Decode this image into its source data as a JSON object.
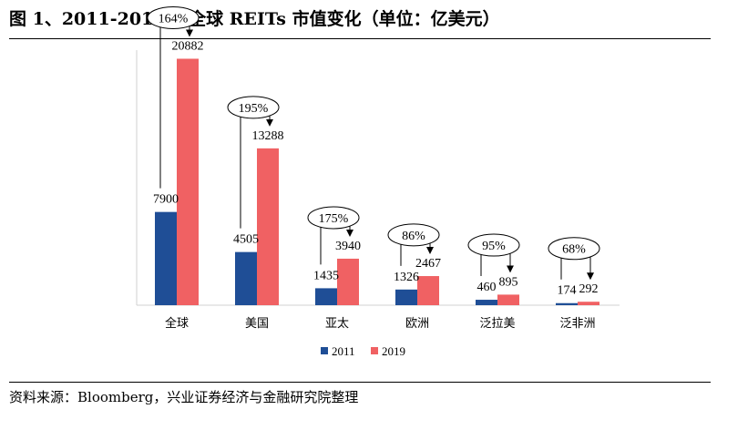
{
  "title": "图 1、2011-2019 年全球 REITs 市值变化（单位：亿美元）",
  "source": "资料来源：Bloomberg，兴业证券经济与金融研究院整理",
  "chart_data": {
    "type": "bar",
    "categories": [
      "全球",
      "美国",
      "亚太",
      "欧洲",
      "泛拉美",
      "泛非洲"
    ],
    "series": [
      {
        "name": "2011",
        "color": "#1f4e96",
        "values": [
          7900,
          4505,
          1435,
          1326,
          460,
          174
        ]
      },
      {
        "name": "2019",
        "color": "#f06163",
        "values": [
          20882,
          13288,
          3940,
          2467,
          895,
          292
        ]
      }
    ],
    "growth_labels": [
      "164%",
      "195%",
      "175%",
      "86%",
      "95%",
      "68%"
    ],
    "ylim": [
      0,
      22000
    ],
    "legend_position": "bottom",
    "grid": false
  }
}
